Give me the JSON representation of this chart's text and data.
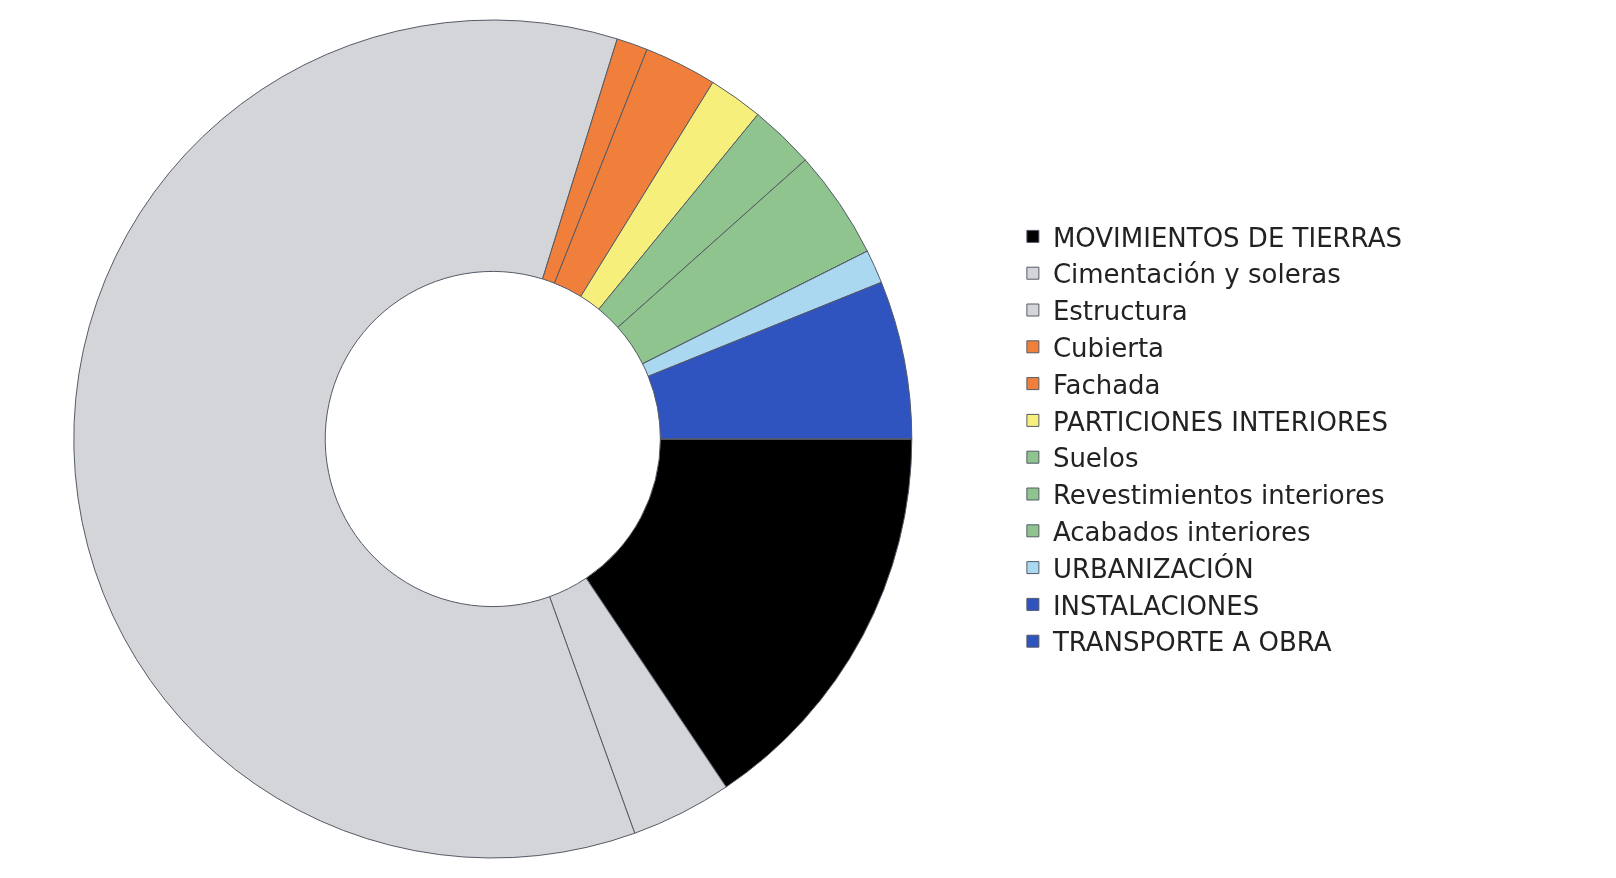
{
  "chart_data": {
    "type": "donut",
    "legend": "right",
    "categories": [
      "MOVIMIENTOS DE TIERRAS",
      "Cimentación y soleras",
      "Estructura",
      "Cubierta",
      "Fachada",
      "PARTICIONES INTERIORES",
      "Suelos",
      "Revestimientos interiores",
      "Acabados interiores",
      "URBANIZACIÓN",
      "INSTALACIONES",
      "TRANSPORTE A OBRA"
    ],
    "values": [
      15.6,
      3.9,
      60.3,
      1.2,
      2.8,
      2.1,
      2.5,
      4.2,
      0,
      1.3,
      6.1,
      0
    ],
    "colors": [
      "#000000",
      "#d4d5d8",
      "#d4d5d8",
      "#f07f3c",
      "#f07f3c",
      "#f7ef7c",
      "#8fc48f",
      "#8fc48f",
      "#8fc48f",
      "#a9d8f0",
      "#2f54c0",
      "#2f54c0"
    ]
  }
}
